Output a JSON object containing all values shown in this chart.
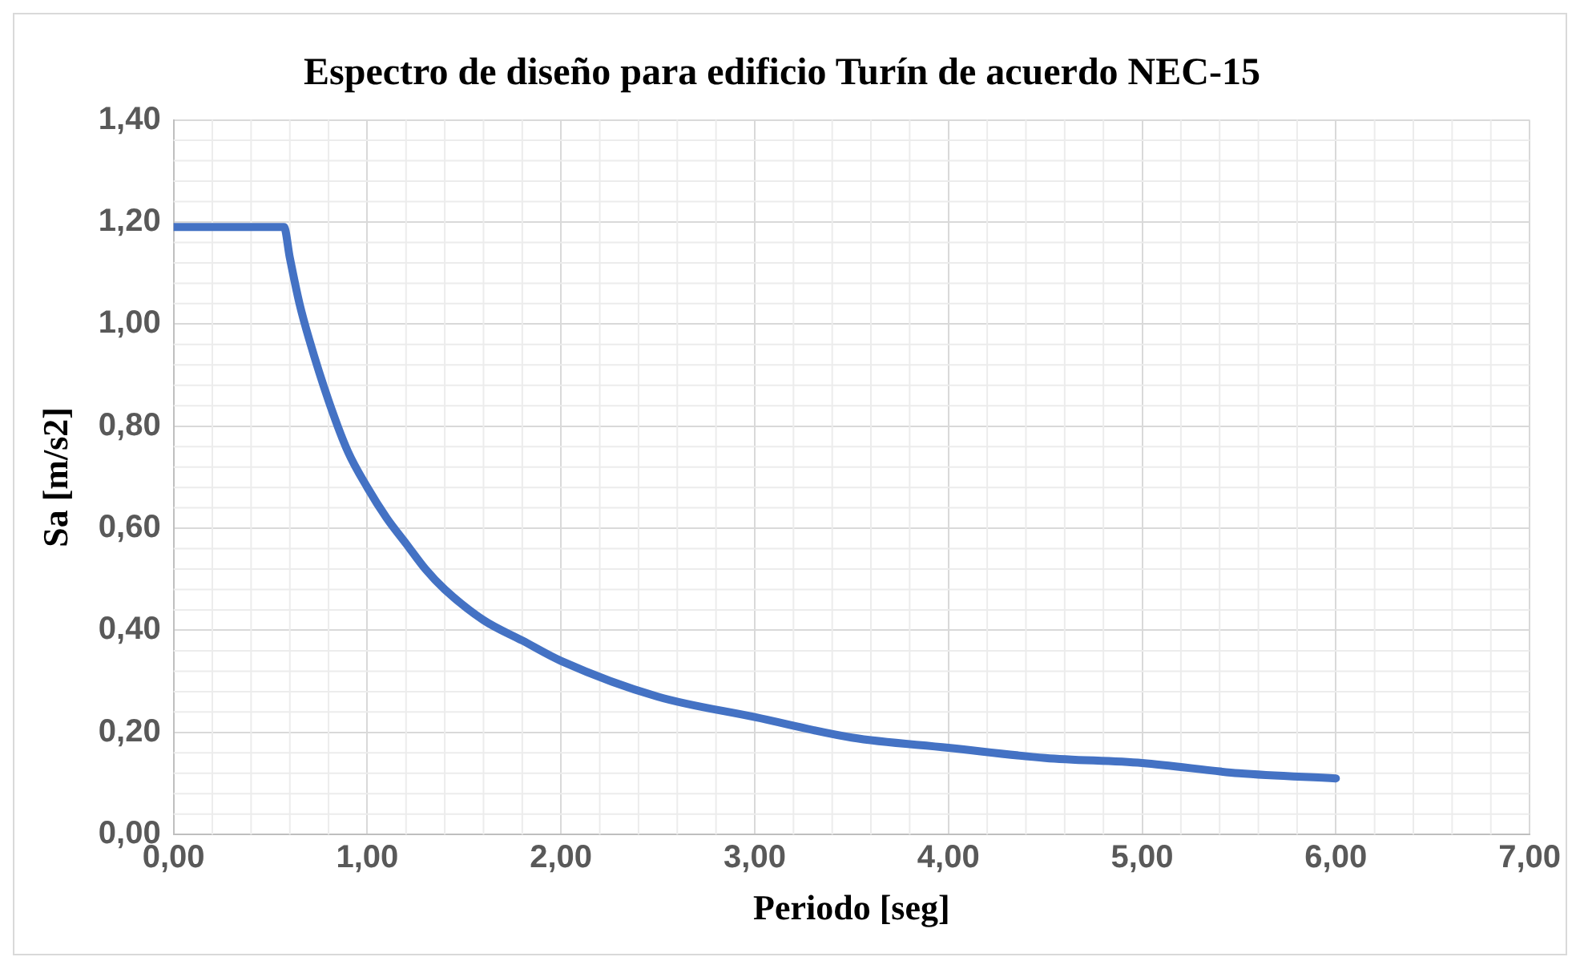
{
  "chart_data": {
    "type": "line",
    "title": "Espectro de diseño para edificio Turín de acuerdo NEC-15",
    "xlabel": "Periodo [seg]",
    "ylabel": "Sa [m/s2]",
    "x": [
      0,
      0.57,
      0.6,
      0.65,
      0.7,
      0.8,
      0.9,
      1.0,
      1.1,
      1.2,
      1.3,
      1.4,
      1.6,
      1.8,
      2.0,
      2.5,
      3.0,
      3.5,
      4.0,
      4.5,
      5.0,
      5.5,
      6.0
    ],
    "series": [
      {
        "color": "#4472c4",
        "values": [
          1.19,
          1.19,
          1.13,
          1.04,
          0.97,
          0.85,
          0.75,
          0.68,
          0.62,
          0.57,
          0.52,
          0.48,
          0.42,
          0.38,
          0.34,
          0.27,
          0.23,
          0.19,
          0.17,
          0.15,
          0.14,
          0.12,
          0.11
        ]
      }
    ],
    "xlim": [
      0,
      7
    ],
    "ylim": [
      0,
      1.4
    ],
    "xticks": [
      {
        "value": 0,
        "label": "0,00"
      },
      {
        "value": 1,
        "label": "1,00"
      },
      {
        "value": 2,
        "label": "2,00"
      },
      {
        "value": 3,
        "label": "3,00"
      },
      {
        "value": 4,
        "label": "4,00"
      },
      {
        "value": 5,
        "label": "5,00"
      },
      {
        "value": 6,
        "label": "6,00"
      },
      {
        "value": 7,
        "label": "7,00"
      }
    ],
    "yticks": [
      {
        "value": 0,
        "label": "0,00"
      },
      {
        "value": 0.2,
        "label": "0,20"
      },
      {
        "value": 0.4,
        "label": "0,40"
      },
      {
        "value": 0.6,
        "label": "0,60"
      },
      {
        "value": 0.8,
        "label": "0,80"
      },
      {
        "value": 1.0,
        "label": "1,00"
      },
      {
        "value": 1.2,
        "label": "1,20"
      },
      {
        "value": 1.4,
        "label": "1,40"
      }
    ],
    "grid": true,
    "legend": false,
    "marker": "none",
    "line_style": "solid"
  }
}
